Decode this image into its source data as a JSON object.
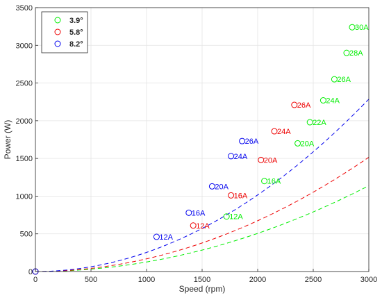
{
  "chart_data": {
    "type": "scatter",
    "xlabel": "Speed (rpm)",
    "ylabel": "Power (W)",
    "xlim": [
      0,
      3000
    ],
    "ylim": [
      0,
      3500
    ],
    "xticks": [
      0,
      500,
      1000,
      1500,
      2000,
      2500,
      3000
    ],
    "yticks": [
      0,
      500,
      1000,
      1500,
      2000,
      2500,
      3000,
      3500
    ],
    "grid": true,
    "legend_position": "top-left",
    "series": [
      {
        "name": "3.9°",
        "color": "#00ee00",
        "curve_coef": 0.0001265,
        "points": [
          {
            "x": 0,
            "y": 0,
            "label": ""
          },
          {
            "x": 1720,
            "y": 730,
            "label": "12A"
          },
          {
            "x": 2060,
            "y": 1200,
            "label": "16A"
          },
          {
            "x": 2360,
            "y": 1700,
            "label": "20A"
          },
          {
            "x": 2470,
            "y": 1980,
            "label": "22A"
          },
          {
            "x": 2590,
            "y": 2270,
            "label": "24A"
          },
          {
            "x": 2690,
            "y": 2550,
            "label": "26A"
          },
          {
            "x": 2800,
            "y": 2900,
            "label": "28A"
          },
          {
            "x": 2850,
            "y": 3240,
            "label": "30A"
          }
        ]
      },
      {
        "name": "5.8°",
        "color": "#ee0000",
        "curve_coef": 0.0001684,
        "points": [
          {
            "x": 0,
            "y": 0,
            "label": ""
          },
          {
            "x": 1420,
            "y": 610,
            "label": "12A"
          },
          {
            "x": 1760,
            "y": 1010,
            "label": "16A"
          },
          {
            "x": 2030,
            "y": 1480,
            "label": "20A"
          },
          {
            "x": 2150,
            "y": 1860,
            "label": "24A"
          },
          {
            "x": 2330,
            "y": 2210,
            "label": "26A"
          }
        ]
      },
      {
        "name": "8.2°",
        "color": "#0000ee",
        "curve_coef": 0.000254,
        "points": [
          {
            "x": 0,
            "y": 0,
            "label": ""
          },
          {
            "x": 1090,
            "y": 460,
            "label": "12A"
          },
          {
            "x": 1380,
            "y": 780,
            "label": "16A"
          },
          {
            "x": 1590,
            "y": 1130,
            "label": "20A"
          },
          {
            "x": 1760,
            "y": 1530,
            "label": "24A"
          },
          {
            "x": 1860,
            "y": 1730,
            "label": "26A"
          }
        ]
      }
    ]
  }
}
